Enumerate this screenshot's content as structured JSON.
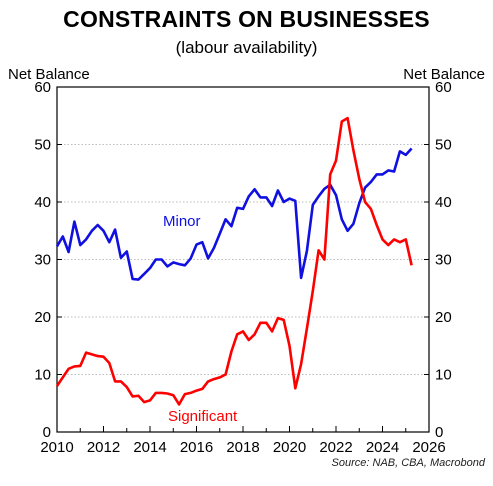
{
  "title": "CONSTRAINTS ON BUSINESSES",
  "subtitle": "(labour availability)",
  "source": "Source: NAB, CBA, Macrobond",
  "colors": {
    "minor": "#1010e0",
    "significant": "#ff0000",
    "grid": "#bdbdbd"
  },
  "chart_data": {
    "type": "line",
    "title": "CONSTRAINTS ON BUSINESSES",
    "subtitle": "(labour availability)",
    "ylabel_left": "Net Balance",
    "ylabel_right": "Net Balance",
    "xlim": [
      2010,
      2026
    ],
    "ylim": [
      0,
      60
    ],
    "x_ticks": [
      "2010",
      "2012",
      "2014",
      "2016",
      "2018",
      "2020",
      "2022",
      "2024",
      "2026"
    ],
    "y_ticks": [
      "0",
      "10",
      "20",
      "30",
      "40",
      "50",
      "60"
    ],
    "grid": "horizontal dotted",
    "series": [
      {
        "name": "Minor",
        "color": "#1010e0",
        "points": [
          [
            2010.0,
            32.3
          ],
          [
            2010.25,
            34.0
          ],
          [
            2010.5,
            31.3
          ],
          [
            2010.75,
            36.6
          ],
          [
            2011.0,
            32.5
          ],
          [
            2011.25,
            33.5
          ],
          [
            2011.5,
            35.0
          ],
          [
            2011.75,
            36.0
          ],
          [
            2012.0,
            35.0
          ],
          [
            2012.25,
            33.0
          ],
          [
            2012.5,
            35.2
          ],
          [
            2012.75,
            30.3
          ],
          [
            2013.0,
            31.4
          ],
          [
            2013.25,
            26.6
          ],
          [
            2013.5,
            26.5
          ],
          [
            2013.75,
            27.5
          ],
          [
            2014.0,
            28.5
          ],
          [
            2014.25,
            30.0
          ],
          [
            2014.5,
            30.0
          ],
          [
            2014.75,
            28.8
          ],
          [
            2015.0,
            29.5
          ],
          [
            2015.25,
            29.2
          ],
          [
            2015.5,
            29.0
          ],
          [
            2015.75,
            30.2
          ],
          [
            2016.0,
            32.6
          ],
          [
            2016.25,
            33.0
          ],
          [
            2016.5,
            30.2
          ],
          [
            2016.75,
            32.0
          ],
          [
            2017.0,
            34.5
          ],
          [
            2017.25,
            37.0
          ],
          [
            2017.5,
            35.8
          ],
          [
            2017.75,
            39.0
          ],
          [
            2018.0,
            38.8
          ],
          [
            2018.25,
            41.0
          ],
          [
            2018.5,
            42.2
          ],
          [
            2018.75,
            40.8
          ],
          [
            2019.0,
            40.8
          ],
          [
            2019.25,
            39.3
          ],
          [
            2019.5,
            42.0
          ],
          [
            2019.75,
            40.0
          ],
          [
            2020.0,
            40.6
          ],
          [
            2020.25,
            40.2
          ],
          [
            2020.5,
            26.8
          ],
          [
            2020.75,
            31.5
          ],
          [
            2021.0,
            39.5
          ],
          [
            2021.25,
            41.0
          ],
          [
            2021.5,
            42.3
          ],
          [
            2021.75,
            43.0
          ],
          [
            2022.0,
            41.2
          ],
          [
            2022.25,
            37.0
          ],
          [
            2022.5,
            35.0
          ],
          [
            2022.75,
            36.2
          ],
          [
            2023.0,
            39.8
          ],
          [
            2023.25,
            42.5
          ],
          [
            2023.5,
            43.5
          ],
          [
            2023.75,
            44.8
          ],
          [
            2024.0,
            44.8
          ],
          [
            2024.25,
            45.5
          ],
          [
            2024.5,
            45.3
          ],
          [
            2024.75,
            48.8
          ],
          [
            2025.0,
            48.2
          ],
          [
            2025.25,
            49.3
          ]
        ]
      },
      {
        "name": "Significant",
        "color": "#ff0000",
        "points": [
          [
            2010.0,
            8.0
          ],
          [
            2010.25,
            9.5
          ],
          [
            2010.5,
            11.0
          ],
          [
            2010.75,
            11.4
          ],
          [
            2011.0,
            11.5
          ],
          [
            2011.25,
            13.8
          ],
          [
            2011.5,
            13.5
          ],
          [
            2011.75,
            13.2
          ],
          [
            2012.0,
            13.1
          ],
          [
            2012.25,
            12.0
          ],
          [
            2012.5,
            8.8
          ],
          [
            2012.75,
            8.8
          ],
          [
            2013.0,
            7.8
          ],
          [
            2013.25,
            6.2
          ],
          [
            2013.5,
            6.3
          ],
          [
            2013.75,
            5.2
          ],
          [
            2014.0,
            5.5
          ],
          [
            2014.25,
            6.8
          ],
          [
            2014.5,
            6.8
          ],
          [
            2014.75,
            6.7
          ],
          [
            2015.0,
            6.4
          ],
          [
            2015.25,
            4.8
          ],
          [
            2015.5,
            6.6
          ],
          [
            2015.75,
            6.8
          ],
          [
            2016.0,
            7.2
          ],
          [
            2016.25,
            7.5
          ],
          [
            2016.5,
            8.8
          ],
          [
            2016.75,
            9.2
          ],
          [
            2017.0,
            9.5
          ],
          [
            2017.25,
            10.0
          ],
          [
            2017.5,
            14.0
          ],
          [
            2017.75,
            17.0
          ],
          [
            2018.0,
            17.5
          ],
          [
            2018.25,
            16.0
          ],
          [
            2018.5,
            17.0
          ],
          [
            2018.75,
            19.0
          ],
          [
            2019.0,
            19.0
          ],
          [
            2019.25,
            17.5
          ],
          [
            2019.5,
            19.8
          ],
          [
            2019.75,
            19.5
          ],
          [
            2020.0,
            15.0
          ],
          [
            2020.25,
            7.6
          ],
          [
            2020.5,
            11.8
          ],
          [
            2020.75,
            18.0
          ],
          [
            2021.0,
            24.5
          ],
          [
            2021.25,
            31.6
          ],
          [
            2021.5,
            30.0
          ],
          [
            2021.75,
            44.8
          ],
          [
            2022.0,
            47.2
          ],
          [
            2022.25,
            54.0
          ],
          [
            2022.5,
            54.6
          ],
          [
            2022.75,
            49.0
          ],
          [
            2023.0,
            44.0
          ],
          [
            2023.25,
            40.0
          ],
          [
            2023.5,
            38.8
          ],
          [
            2023.75,
            36.0
          ],
          [
            2024.0,
            33.5
          ],
          [
            2024.25,
            32.5
          ],
          [
            2024.5,
            33.5
          ],
          [
            2024.75,
            33.0
          ],
          [
            2025.0,
            33.5
          ],
          [
            2025.25,
            29.0
          ]
        ]
      }
    ],
    "annotations": [
      {
        "text": "Minor",
        "series": "Minor"
      },
      {
        "text": "Significant",
        "series": "Significant"
      }
    ],
    "source": "Source: NAB, CBA, Macrobond"
  }
}
